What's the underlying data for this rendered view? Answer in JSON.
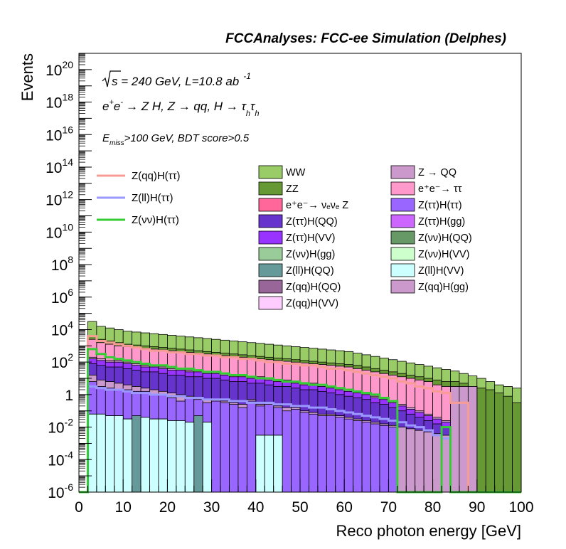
{
  "chart_data": {
    "type": "area",
    "title": "FCCAnalyses: FCC-ee Simulation (Delphes)",
    "xlabel": "Reco photon energy [GeV]",
    "ylabel": "Events",
    "xlim": [
      0,
      100
    ],
    "ylim_log10": [
      -6,
      21
    ],
    "yscale": "log",
    "x_ticks": [
      0,
      10,
      20,
      30,
      40,
      50,
      60,
      70,
      80,
      90,
      100
    ],
    "y_tick_exponents": [
      -6,
      -4,
      -2,
      0,
      2,
      4,
      6,
      8,
      10,
      12,
      14,
      16,
      18,
      20
    ],
    "y_tick_plain": {
      "0": "1"
    },
    "annotations": {
      "sqrt_s": "s",
      "energy": " = 240 GeV, L=10.8 ab",
      "lumi_exp": "-1",
      "process_a": "e",
      "process_b": "e",
      "process_c": "→ Z H, Z → qq, H → τ",
      "process_sub": "h",
      "cut_e": "E",
      "cut_sub": "miss",
      "cut_rest": ">100 GeV, BDT score>0.5"
    },
    "signals": [
      {
        "name": "Z(qq)H(ττ)",
        "color": "#f79c94"
      },
      {
        "name": "Z(ll)H(ττ)",
        "color": "#9999ff"
      },
      {
        "name": "Z(νν)H(ττ)",
        "color": "#33cc33"
      }
    ],
    "backgrounds": [
      {
        "name": "WW",
        "color": "#99cc66"
      },
      {
        "name": "Z → QQ",
        "color": "#cc99cc"
      },
      {
        "name": "ZZ",
        "color": "#669933"
      },
      {
        "name": "e⁺e⁻→ ττ",
        "color": "#ff99cc"
      },
      {
        "name": "e⁺e⁻→ νₑνₑ Z",
        "color": "#ff6699"
      },
      {
        "name": "Z(ττ)H(ττ)",
        "color": "#9966ff"
      },
      {
        "name": "Z(ττ)H(QQ)",
        "color": "#6633cc"
      },
      {
        "name": "Z(ττ)H(gg)",
        "color": "#cc66ff"
      },
      {
        "name": "Z(ττ)H(VV)",
        "color": "#9933ff"
      },
      {
        "name": "Z(νν)H(QQ)",
        "color": "#669966"
      },
      {
        "name": "Z(νν)H(gg)",
        "color": "#99cc99"
      },
      {
        "name": "Z(νν)H(VV)",
        "color": "#ccffcc"
      },
      {
        "name": "Z(ll)H(QQ)",
        "color": "#669999"
      },
      {
        "name": "Z(ll)H(VV)",
        "color": "#ccffff"
      },
      {
        "name": "Z(qq)H(QQ)",
        "color": "#996699"
      },
      {
        "name": "Z(qq)H(gg)",
        "color": "#cc99cc"
      },
      {
        "name": "Z(qq)H(VV)",
        "color": "#ffccff"
      }
    ],
    "stack_bin_width": 2,
    "stack_bins_x": [
      0,
      2,
      4,
      6,
      8,
      10,
      12,
      14,
      16,
      18,
      20,
      22,
      24,
      26,
      28,
      30,
      32,
      34,
      36,
      38,
      40,
      42,
      44,
      46,
      48,
      50,
      52,
      54,
      56,
      58,
      60,
      62,
      64,
      66,
      68,
      70,
      72,
      74,
      76,
      78,
      80,
      82,
      84,
      86,
      88,
      90,
      92,
      94,
      96,
      98
    ],
    "stack_layers_log10": [
      {
        "name": "Z(ll)H(VV)",
        "color": "#ccffff",
        "top": [
          -6,
          -1.2,
          -1.2,
          -1.3,
          -1.3,
          -1.5,
          -6,
          -1.4,
          -1.5,
          -1.5,
          -1.6,
          -1.6,
          -1.7,
          -6,
          -1.7,
          -6,
          -6,
          -6,
          -6,
          -6,
          -2.5,
          -2.5,
          -2.5,
          -6,
          -6,
          -6,
          -6,
          -6,
          -6,
          -6,
          -6,
          -6,
          -6,
          -6,
          -6,
          -6,
          -6,
          -6,
          -6,
          -6,
          -6,
          -6,
          -6,
          -6,
          -6,
          -6,
          -6,
          -6,
          -6,
          -6
        ]
      },
      {
        "name": "Z(ll)H(QQ)",
        "color": "#669999",
        "top": [
          -6,
          -1.2,
          -1.2,
          -1.3,
          -1.3,
          -1.5,
          -1.3,
          -1.4,
          -1.5,
          -1.5,
          -1.6,
          -1.6,
          -1.7,
          -1.3,
          -1.7,
          -6,
          -6,
          -6,
          -6,
          -6,
          -2.5,
          -2.5,
          -2.5,
          -6,
          -6,
          -6,
          -6,
          -6,
          -6,
          -6,
          -6,
          -6,
          -6,
          -6,
          -6,
          -6,
          -6,
          -6,
          -6,
          -6,
          -6,
          -6,
          -6,
          -6,
          -6,
          -6,
          -6,
          -6,
          -6,
          -6
        ]
      },
      {
        "name": "Z(ττ)H(ττ)",
        "color": "#9966ff",
        "top": [
          -6,
          0.8,
          0.5,
          0.4,
          0.3,
          0.3,
          0.2,
          0.2,
          0.0,
          0.0,
          -0.2,
          -0.4,
          -0.2,
          -0.3,
          -0.5,
          -0.4,
          -0.5,
          -0.6,
          -0.8,
          -0.4,
          -0.7,
          -0.6,
          -0.8,
          -1.0,
          -0.9,
          -1.1,
          -1.2,
          -1.3,
          -1.3,
          -1.4,
          -1.5,
          -1.6,
          -1.7,
          -1.8,
          -1.9,
          -2.0,
          -6,
          -6,
          -6,
          -6,
          -6,
          -6,
          -6,
          -6,
          -6,
          -6,
          -6,
          -6,
          -6,
          -6
        ]
      },
      {
        "name": "Z(qq)H(gg)",
        "color": "#cc99cc",
        "top": [
          -6,
          1.2,
          0.9,
          0.8,
          0.7,
          0.6,
          0.5,
          0.4,
          0.3,
          0.2,
          0.1,
          0.0,
          -0.1,
          -0.2,
          -0.3,
          -0.3,
          -0.4,
          -0.5,
          -0.6,
          -0.3,
          -0.6,
          -0.5,
          -0.7,
          -0.8,
          -0.8,
          -1.0,
          -1.1,
          -1.2,
          -1.2,
          -1.3,
          -1.4,
          -1.5,
          -1.6,
          -1.7,
          -1.8,
          -1.9,
          -2.0,
          -2.1,
          -2.2,
          -2.3,
          -2.4,
          -2.5,
          -6,
          -6,
          -6,
          -6,
          -6,
          -6,
          -6,
          -6
        ]
      },
      {
        "name": "Z(ττ)H(QQ)",
        "color": "#6633cc",
        "top": [
          -6,
          1.9,
          1.8,
          1.7,
          1.7,
          1.6,
          1.5,
          1.4,
          1.4,
          1.3,
          1.2,
          1.2,
          1.1,
          1.1,
          1.0,
          1.0,
          0.9,
          0.8,
          0.8,
          0.7,
          0.7,
          0.6,
          0.5,
          0.5,
          0.4,
          0.3,
          0.3,
          0.2,
          0.1,
          0.0,
          -0.1,
          -0.2,
          -0.3,
          -0.5,
          -0.6,
          -0.8,
          -1.0,
          -1.2,
          -1.4,
          -1.6,
          -1.8,
          -2.0,
          -6,
          -6,
          -6,
          -6,
          -6,
          -6,
          -6,
          -6
        ]
      },
      {
        "name": "Z(ττ)H(VV)",
        "color": "#9933ff",
        "top": [
          -6,
          2.2,
          2.1,
          2.0,
          2.0,
          1.9,
          1.8,
          1.7,
          1.7,
          1.6,
          1.5,
          1.5,
          1.4,
          1.4,
          1.3,
          1.3,
          1.2,
          1.1,
          1.1,
          1.0,
          1.0,
          0.9,
          0.8,
          0.8,
          0.7,
          0.6,
          0.6,
          0.5,
          0.4,
          0.3,
          0.2,
          0.1,
          0.0,
          -0.2,
          -0.3,
          -0.5,
          -0.7,
          -0.9,
          -1.1,
          -1.3,
          -1.5,
          -1.7,
          -6,
          -6,
          -6,
          -6,
          -6,
          -6,
          -6,
          -6
        ]
      },
      {
        "name": "Z → QQ",
        "color": "#cc99cc",
        "top": [
          -6,
          2.3,
          2.2,
          2.1,
          2.1,
          2.0,
          1.9,
          1.8,
          1.8,
          1.7,
          1.6,
          1.6,
          1.5,
          1.5,
          1.4,
          1.4,
          1.3,
          1.2,
          1.2,
          1.1,
          1.1,
          1.0,
          0.9,
          0.9,
          0.8,
          0.7,
          0.7,
          0.6,
          0.5,
          0.4,
          0.3,
          0.2,
          0.1,
          -0.1,
          -0.2,
          -0.4,
          -0.6,
          -0.8,
          -1.0,
          -1.2,
          -1.4,
          -1.6,
          0.5,
          0.5,
          0.5,
          -6,
          -6,
          -6,
          -6,
          -6
        ]
      },
      {
        "name": "e⁺e⁻→ ττ",
        "color": "#ff99cc",
        "top": [
          -6,
          3.4,
          3.2,
          3.1,
          3.0,
          2.95,
          2.9,
          2.85,
          2.8,
          2.75,
          2.7,
          2.65,
          2.6,
          2.55,
          2.5,
          2.45,
          2.4,
          2.35,
          2.3,
          2.25,
          2.2,
          2.15,
          2.1,
          2.05,
          2.0,
          1.95,
          1.9,
          1.85,
          1.8,
          1.75,
          1.7,
          1.6,
          1.5,
          1.4,
          1.3,
          1.2,
          1.1,
          1.0,
          0.9,
          0.8,
          0.6,
          0.5,
          0.5,
          0.5,
          0.5,
          -6,
          -6,
          -6,
          -6,
          -6
        ]
      },
      {
        "name": "ZZ",
        "color": "#669933",
        "top": [
          -6,
          3.6,
          3.4,
          3.3,
          3.2,
          3.1,
          3.05,
          3.0,
          2.95,
          2.9,
          2.85,
          2.8,
          2.75,
          2.7,
          2.65,
          2.6,
          2.55,
          2.5,
          2.45,
          2.4,
          2.35,
          2.3,
          2.25,
          2.2,
          2.15,
          2.1,
          2.05,
          2.0,
          1.95,
          1.9,
          1.85,
          1.8,
          1.7,
          1.6,
          1.5,
          1.4,
          1.3,
          1.2,
          1.1,
          1.0,
          0.9,
          0.8,
          0.8,
          0.7,
          0.5,
          0.4,
          0.3,
          0.1,
          -0.1,
          -0.5
        ]
      },
      {
        "name": "WW",
        "color": "#99cc66",
        "top": [
          -6,
          4.5,
          4.2,
          4.1,
          4.0,
          3.9,
          3.85,
          3.8,
          3.75,
          3.7,
          3.65,
          3.6,
          3.55,
          3.5,
          3.45,
          3.4,
          3.35,
          3.3,
          3.25,
          3.2,
          3.15,
          3.1,
          3.05,
          3.0,
          2.95,
          2.9,
          2.85,
          2.8,
          2.75,
          2.7,
          2.65,
          2.55,
          2.45,
          2.35,
          2.25,
          2.15,
          2.05,
          1.95,
          1.85,
          1.75,
          1.65,
          1.55,
          1.45,
          1.3,
          1.15,
          1.0,
          0.8,
          0.6,
          0.5,
          0.4
        ]
      }
    ],
    "signal_lines_log10": [
      {
        "name": "Z(qq)H(ττ)",
        "color": "#f79c94",
        "y": [
          -6,
          3.6,
          3.3,
          3.2,
          3.1,
          3.0,
          2.9,
          2.8,
          2.7,
          2.7,
          2.6,
          2.6,
          2.5,
          2.5,
          2.4,
          2.4,
          2.3,
          2.3,
          2.2,
          2.2,
          2.1,
          2.0,
          2.0,
          1.9,
          1.9,
          1.8,
          1.8,
          1.7,
          1.6,
          1.6,
          1.5,
          1.4,
          1.3,
          1.2,
          1.1,
          1.0,
          0.8,
          0.7,
          0.5,
          0.4,
          0.2,
          0.1,
          -0.5,
          -0.5,
          -6,
          -6,
          -6,
          -6,
          -6,
          -6
        ]
      },
      {
        "name": "Z(ll)H(ττ)",
        "color": "#9999ff",
        "y": [
          -6,
          0.5,
          0.4,
          0.3,
          0.3,
          0.2,
          0.1,
          0.1,
          0.0,
          0.0,
          -0.1,
          -0.1,
          -0.2,
          -0.2,
          -0.3,
          -0.3,
          -0.3,
          -0.4,
          -0.4,
          -0.5,
          -0.5,
          -0.5,
          -0.6,
          -0.6,
          -0.7,
          -0.7,
          -0.8,
          -0.8,
          -0.9,
          -1.0,
          -1.1,
          -1.2,
          -1.3,
          -1.4,
          -1.5,
          -1.6,
          -1.7,
          -1.9,
          -2.0,
          -2.2,
          -2.5,
          -2.7,
          -6,
          -6,
          -6,
          -6,
          -6,
          -6,
          -6,
          -6
        ]
      },
      {
        "name": "Z(νν)H(ττ)",
        "color": "#33cc33",
        "y": [
          -6,
          2.8,
          2.5,
          2.3,
          2.2,
          2.1,
          2.0,
          1.9,
          1.8,
          1.8,
          1.7,
          1.6,
          1.6,
          1.5,
          1.4,
          1.4,
          1.3,
          1.2,
          1.2,
          1.1,
          1.0,
          1.0,
          0.9,
          0.8,
          0.8,
          0.7,
          0.6,
          0.6,
          0.5,
          0.4,
          0.3,
          0.2,
          0.1,
          0.0,
          -0.2,
          -0.4,
          -6,
          -6,
          -6,
          -6,
          -6,
          -2,
          -6,
          -6,
          -6,
          -6,
          -6,
          -6,
          -6,
          -6
        ]
      }
    ]
  }
}
